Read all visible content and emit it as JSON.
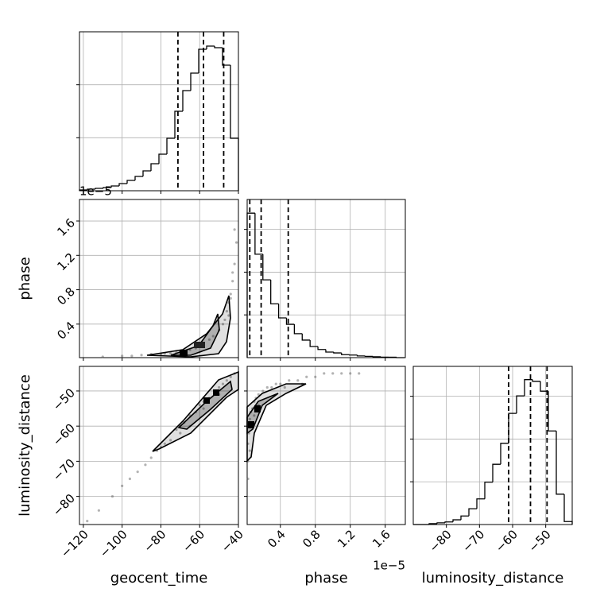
{
  "chart_data": [
    {
      "type": "histogram",
      "color": "#000000",
      "bins": [
        -122,
        -117.9,
        -113.8,
        -109.7,
        -105.6,
        -101.5,
        -97.4,
        -93.3,
        -89.2,
        -85.1,
        -81,
        -76.9,
        -72.8,
        -68.7,
        -64.6,
        -60.5,
        -56.4,
        -52.3,
        -48.2,
        -44.1,
        -40
      ],
      "counts": [
        0.015,
        0.03,
        0.045,
        0.06,
        0.09,
        0.135,
        0.195,
        0.27,
        0.375,
        0.51,
        0.69,
        0.99,
        1.5,
        1.89,
        2.22,
        2.67,
        2.73,
        2.7,
        2.37,
        0.99
      ],
      "quantiles": [
        -71.2,
        -58,
        -47.6
      ],
      "xlim": [
        -122,
        -40
      ],
      "xticks": [
        -120,
        -100,
        -80,
        -60,
        -40
      ],
      "ylim": [
        0,
        3
      ],
      "yticks": [
        1,
        2
      ],
      "grid": true
    },
    {
      "type": "scatter",
      "color": "#555555",
      "ylabel": "phase",
      "offset_text": "1e−5",
      "x": [
        -110,
        -100,
        -95,
        -90,
        -85,
        -80,
        -78,
        -75,
        -72,
        -70,
        -68,
        -65,
        -62,
        -60,
        -58,
        -55,
        -53,
        -50,
        -48,
        -47,
        -46,
        -45,
        -44,
        -43,
        -42,
        -41,
        -42,
        -44,
        -45,
        -43
      ],
      "y": [
        0.02,
        0.03,
        0.03,
        0.04,
        0.05,
        0.05,
        0.06,
        0.06,
        0.07,
        0.08,
        0.09,
        0.1,
        0.12,
        0.14,
        0.17,
        0.22,
        0.26,
        0.33,
        0.4,
        0.45,
        0.55,
        0.65,
        0.75,
        0.9,
        1.1,
        1.35,
        1.5,
        0.7,
        0.5,
        1.0
      ],
      "xlim": [
        -122,
        -40
      ],
      "xticks": [
        -120,
        -100,
        -80,
        -60,
        -40
      ],
      "ylim": [
        0.01,
        1.85
      ],
      "yticks": [
        0.4,
        0.8,
        1.2,
        1.6
      ],
      "grid": true
    },
    {
      "type": "histogram",
      "color": "#000000",
      "bins": [
        0.02,
        0.11,
        0.2,
        0.29,
        0.38,
        0.47,
        0.56,
        0.65,
        0.74,
        0.83,
        0.92,
        1.01,
        1.1,
        1.19,
        1.28,
        1.37,
        1.46,
        1.55,
        1.64,
        1.73,
        1.82
      ],
      "counts": [
        3.38,
        2.42,
        1.82,
        1.26,
        0.93,
        0.78,
        0.56,
        0.41,
        0.26,
        0.19,
        0.13,
        0.11,
        0.07,
        0.06,
        0.04,
        0.03,
        0.02,
        0.01,
        0.01,
        0
      ],
      "quantiles": [
        0.05,
        0.18,
        0.49
      ],
      "xlim": [
        0.02,
        1.83
      ],
      "xticks": [
        0.4,
        0.8,
        1.2,
        1.6
      ],
      "ylim": [
        0,
        3.7
      ],
      "yticks": [
        1,
        2,
        3
      ],
      "grid": true
    },
    {
      "type": "scatter",
      "color": "#555555",
      "xlabel": "geocent_time",
      "ylabel": "luminosity_distance",
      "x": [
        -118,
        -112,
        -105,
        -100,
        -96,
        -92,
        -88,
        -85,
        -82,
        -80,
        -78,
        -75,
        -72,
        -70,
        -68,
        -65,
        -62,
        -60,
        -58,
        -55,
        -52,
        -50,
        -48,
        -46,
        -44,
        -42,
        -65,
        -70,
        -58,
        -50
      ],
      "y": [
        -87,
        -84,
        -80,
        -77,
        -75,
        -73,
        -71,
        -69,
        -67,
        -66,
        -65,
        -64,
        -61,
        -60,
        -59,
        -57,
        -56,
        -54,
        -53,
        -52,
        -50,
        -49,
        -48,
        -47,
        -46,
        -45,
        -60,
        -62,
        -55,
        -51
      ],
      "xlim": [
        -122,
        -40
      ],
      "xticks": [
        {
          "value": -120,
          "label": "−120"
        },
        {
          "value": -100,
          "label": "−100"
        },
        {
          "value": -80,
          "label": "−80"
        },
        {
          "value": -60,
          "label": "−60"
        },
        {
          "value": -40,
          "label": "−40"
        }
      ],
      "ylim": [
        -88,
        -43
      ],
      "yticks": [
        {
          "value": -80,
          "label": "−80"
        },
        {
          "value": -70,
          "label": "−70"
        },
        {
          "value": -60,
          "label": "−60"
        },
        {
          "value": -50,
          "label": "−50"
        }
      ],
      "grid": true
    },
    {
      "type": "scatter",
      "color": "#555555",
      "xlabel": "phase",
      "offset_text": "1e−5",
      "x": [
        0.03,
        0.03,
        0.04,
        0.05,
        0.05,
        0.06,
        0.08,
        0.1,
        0.12,
        0.15,
        0.2,
        0.25,
        0.3,
        0.35,
        0.4,
        0.5,
        0.6,
        0.7,
        0.8,
        0.9,
        1.0,
        1.1,
        1.2,
        1.3,
        0.03,
        0.05,
        0.1,
        0.15,
        0.45,
        0.65
      ],
      "y": [
        -70,
        -65,
        -62,
        -60,
        -58,
        -56,
        -55,
        -53,
        -52,
        -51,
        -50,
        -49,
        -49,
        -48,
        -48,
        -47,
        -47,
        -46,
        -46,
        -45,
        -45,
        -45,
        -45,
        -45,
        -75,
        -67,
        -57,
        -54,
        -49,
        -48
      ],
      "xlim": [
        0.02,
        1.83
      ],
      "xticks": [
        0.4,
        0.8,
        1.2,
        1.6
      ],
      "ylim": [
        -88,
        -43
      ],
      "yticks": [
        -80,
        -70,
        -60,
        -50
      ],
      "grid": true
    },
    {
      "type": "histogram",
      "color": "#000000",
      "xlabel": "luminosity_distance",
      "bins": [
        -90,
        -87.6,
        -85.2,
        -82.8,
        -80.4,
        -78,
        -75.6,
        -73.2,
        -70.8,
        -68.4,
        -66,
        -63.6,
        -61.2,
        -58.8,
        -56.4,
        -54,
        -51.6,
        -49.2,
        -46.8,
        -44.4,
        -42
      ],
      "counts": [
        0,
        0,
        0.02,
        0.04,
        0.06,
        0.11,
        0.2,
        0.37,
        0.6,
        0.99,
        1.41,
        1.9,
        2.6,
        3.01,
        3.39,
        3.35,
        3.12,
        2.19,
        0.71,
        0.07
      ],
      "quantiles": [
        -61.2,
        -54.6,
        -49.6
      ],
      "xlim": [
        -90,
        -42
      ],
      "xticks": [
        {
          "value": -80,
          "label": "−80"
        },
        {
          "value": -70,
          "label": "−70"
        },
        {
          "value": -60,
          "label": "−60"
        },
        {
          "value": -50,
          "label": "−50"
        }
      ],
      "ylim": [
        0,
        3.7
      ],
      "yticks": [
        1,
        2,
        3
      ],
      "grid": true
    }
  ]
}
